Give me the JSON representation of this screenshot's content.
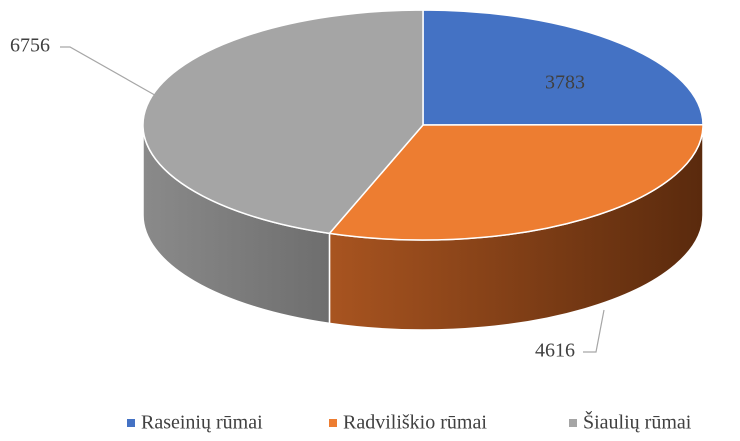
{
  "chart_data": {
    "type": "pie3d",
    "categories": [
      "Raseinių rūmai",
      "Radviliškio rūmai",
      "Šiaulių rūmai"
    ],
    "values": [
      3783,
      4616,
      6756
    ],
    "colors": [
      "#4472c4",
      "#ed7d31",
      "#a5a5a5"
    ],
    "legend": "bottom"
  }
}
